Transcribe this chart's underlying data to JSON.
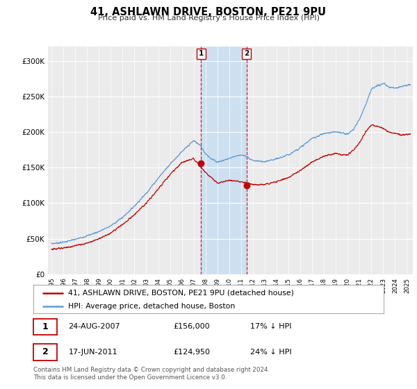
{
  "title": "41, ASHLAWN DRIVE, BOSTON, PE21 9PU",
  "subtitle": "Price paid vs. HM Land Registry's House Price Index (HPI)",
  "legend_line1": "41, ASHLAWN DRIVE, BOSTON, PE21 9PU (detached house)",
  "legend_line2": "HPI: Average price, detached house, Boston",
  "annotation1_date": "24-AUG-2007",
  "annotation1_price": "£156,000",
  "annotation1_hpi": "17% ↓ HPI",
  "annotation2_date": "17-JUN-2011",
  "annotation2_price": "£124,950",
  "annotation2_hpi": "24% ↓ HPI",
  "footer": "Contains HM Land Registry data © Crown copyright and database right 2024.\nThis data is licensed under the Open Government Licence v3.0.",
  "hpi_color": "#5b9bd5",
  "price_color": "#c00000",
  "background_color": "#ffffff",
  "plot_bg_color": "#ebebeb",
  "shade_color": "#cde0f0",
  "vline_color": "#cc0000",
  "ylim": [
    0,
    320000
  ],
  "yticks": [
    0,
    50000,
    100000,
    150000,
    200000,
    250000,
    300000
  ],
  "sale1_year": 2007.63,
  "sale1_price": 156000,
  "sale2_year": 2011.46,
  "sale2_price": 124950,
  "shade_x1": 2007.63,
  "shade_x2": 2011.46,
  "xlim_start": 1994.7,
  "xlim_end": 2025.5,
  "hpi_key_years": [
    1995,
    1996,
    1997,
    1998,
    1999,
    2000,
    2001,
    2002,
    2003,
    2004,
    2005,
    2006,
    2007,
    2007.5,
    2008,
    2008.5,
    2009,
    2009.5,
    2010,
    2010.5,
    2011,
    2011.5,
    2012,
    2013,
    2014,
    2015,
    2016,
    2017,
    2018,
    2019,
    2019.5,
    2020,
    2020.5,
    2021,
    2021.5,
    2022,
    2022.5,
    2023,
    2023.5,
    2024,
    2024.5,
    2025
  ],
  "hpi_key_vals": [
    43000,
    45000,
    49000,
    54000,
    60000,
    68000,
    80000,
    96000,
    114000,
    135000,
    155000,
    172000,
    188000,
    182000,
    170000,
    162000,
    158000,
    160000,
    163000,
    166000,
    168000,
    165000,
    160000,
    158000,
    162000,
    168000,
    178000,
    191000,
    198000,
    200000,
    199000,
    197000,
    204000,
    218000,
    238000,
    260000,
    265000,
    268000,
    263000,
    262000,
    264000,
    266000
  ],
  "price_key_years": [
    1995,
    1996,
    1997,
    1998,
    1999,
    2000,
    2001,
    2002,
    2003,
    2004,
    2005,
    2006,
    2007,
    2007.5,
    2008,
    2008.5,
    2009,
    2009.5,
    2010,
    2010.5,
    2011,
    2011.5,
    2012,
    2013,
    2014,
    2015,
    2016,
    2017,
    2018,
    2019,
    2019.5,
    2020,
    2020.5,
    2021,
    2021.5,
    2022,
    2022.5,
    2023,
    2023.5,
    2024,
    2024.5,
    2025
  ],
  "price_key_vals": [
    35000,
    37000,
    40000,
    44000,
    50000,
    58000,
    70000,
    84000,
    100000,
    120000,
    140000,
    157000,
    163000,
    152000,
    143000,
    136000,
    128000,
    130000,
    132000,
    131000,
    130000,
    128000,
    126000,
    126000,
    130000,
    136000,
    146000,
    158000,
    166000,
    170000,
    168000,
    168000,
    175000,
    185000,
    200000,
    210000,
    208000,
    205000,
    200000,
    198000,
    196000,
    197000
  ]
}
